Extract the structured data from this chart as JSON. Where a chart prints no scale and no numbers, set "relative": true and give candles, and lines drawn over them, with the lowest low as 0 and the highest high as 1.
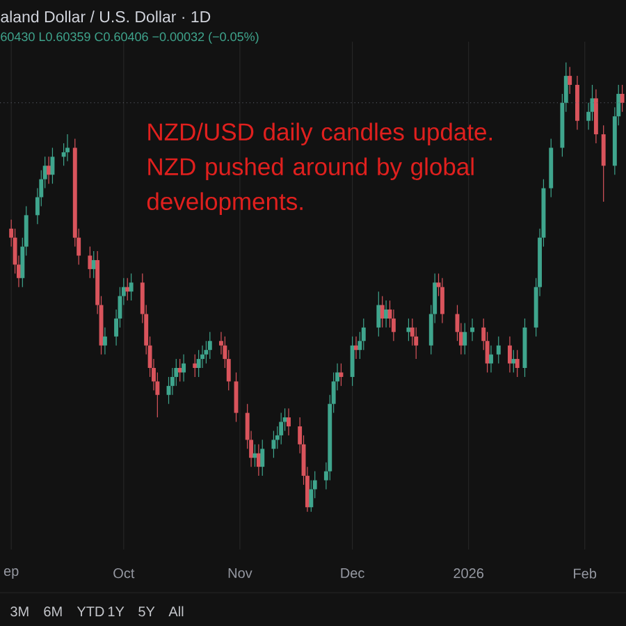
{
  "chart_data": {
    "type": "candlestick",
    "title": "aland Dollar / U.S. Dollar · 1D",
    "subtitle": "60430 L0.60359 C0.60406 −0.00032 (−0.05%)",
    "relative": true,
    "grid": "x",
    "colors": [
      "#d9545c",
      "#d9545c",
      "#d9545c",
      "#3fa58d",
      "#3fa58d",
      "#3fa58d",
      "#3fa58d",
      "#3fa58d",
      "#d9545c",
      "#3fa58d",
      "#3fa58d",
      "#3fa58d",
      "#d9545c",
      "#d9545c",
      "#d9545c",
      "#3fa58d",
      "#d9545c",
      "#d9545c",
      "#3fa58d",
      "#3fa58d",
      "#3fa58d",
      "#3fa58d",
      "#d9545c",
      "#3fa58d",
      "#d9545c",
      "#d9545c",
      "#d9545c",
      "#d9545c",
      "#d9545c",
      "#3fa58d",
      "#3fa58d",
      "#3fa58d",
      "#d9545c",
      "#3fa58d",
      "#d9545c",
      "#3fa58d",
      "#3fa58d",
      "#3fa58d",
      "#3fa58d",
      "#d9545c",
      "#d9545c",
      "#d9545c",
      "#d9545c",
      "#d9545c",
      "#d9545c",
      "#3fa58d",
      "#d9545c",
      "#3fa58d",
      "#3fa58d",
      "#3fa58d",
      "#3fa58d",
      "#3fa58d",
      "#d9545c",
      "#d9545c",
      "#d9545c",
      "#d9545c",
      "#3fa58d",
      "#3fa58d",
      "#3fa58d",
      "#3fa58d",
      "#3fa58d",
      "#3fa58d",
      "#d9545c",
      "#3fa58d",
      "#d9545c",
      "#3fa58d",
      "#3fa58d",
      "#3fa58d",
      "#d9545c",
      "#3fa58d",
      "#d9545c",
      "#d9545c",
      "#3fa58d",
      "#d9545c",
      "#d9545c",
      "#3fa58d",
      "#3fa58d",
      "#d9545c",
      "#d9545c",
      "#d9545c",
      "#d9545c",
      "#3fa58d",
      "#3fa58d",
      "#d9545c",
      "#d9545c",
      "#3fa58d",
      "#3fa58d",
      "#d9545c",
      "#3fa58d",
      "#d9545c",
      "#3fa58d",
      "#3fa58d",
      "#3fa58d",
      "#3fa58d",
      "#3fa58d",
      "#3fa58d",
      "#3fa58d",
      "#d9545c",
      "#d9545c",
      "#3fa58d",
      "#3fa58d",
      "#d9545c",
      "#d9545c",
      "#3fa58d",
      "#3fa58d",
      "#d9545c"
    ],
    "xlim": [
      "2025-08-29",
      "2026-02-12"
    ],
    "xticks": [
      {
        "value": "2025-09-01",
        "label": "ep"
      },
      {
        "value": "2025-10-01",
        "label": "Oct"
      },
      {
        "value": "2025-11-01",
        "label": "Nov"
      },
      {
        "value": "2025-12-01",
        "label": "Dec"
      },
      {
        "value": "2026-01-01",
        "label": "2026"
      },
      {
        "value": "2026-02-01",
        "label": "Feb"
      }
    ],
    "ref_lines": [
      {
        "axis": "y",
        "value": 0.91,
        "color": "#5d606b",
        "line_style": "dotted"
      }
    ],
    "annotations": [
      "NZD/USD daily candles update. NZD pushed around by global developments.",
      "3M",
      "6M",
      "YTD",
      "1Y",
      "5Y",
      "All"
    ],
    "x": [
      "2025-09-01",
      "2025-09-02",
      "2025-09-03",
      "2025-09-04",
      "2025-09-05",
      "2025-09-08",
      "2025-09-09",
      "2025-09-10",
      "2025-09-11",
      "2025-09-12",
      "2025-09-15",
      "2025-09-16",
      "2025-09-18",
      "2025-09-19",
      "2025-09-22",
      "2025-09-23",
      "2025-09-24",
      "2025-09-25",
      "2025-09-26",
      "2025-09-29",
      "2025-09-30",
      "2025-10-01",
      "2025-10-02",
      "2025-10-03",
      "2025-10-06",
      "2025-10-07",
      "2025-10-08",
      "2025-10-09",
      "2025-10-10",
      "2025-10-13",
      "2025-10-14",
      "2025-10-15",
      "2025-10-16",
      "2025-10-17",
      "2025-10-20",
      "2025-10-21",
      "2025-10-22",
      "2025-10-23",
      "2025-10-24",
      "2025-10-27",
      "2025-10-28",
      "2025-10-29",
      "2025-10-31",
      "2025-11-03",
      "2025-11-04",
      "2025-11-05",
      "2025-11-06",
      "2025-11-07",
      "2025-11-10",
      "2025-11-11",
      "2025-11-12",
      "2025-11-13",
      "2025-11-14",
      "2025-11-17",
      "2025-11-18",
      "2025-11-19",
      "2025-11-20",
      "2025-11-21",
      "2025-11-24",
      "2025-11-25",
      "2025-11-26",
      "2025-11-27",
      "2025-11-28",
      "2025-12-01",
      "2025-12-02",
      "2025-12-03",
      "2025-12-04",
      "2025-12-08",
      "2025-12-09",
      "2025-12-10",
      "2025-12-11",
      "2025-12-12",
      "2025-12-16",
      "2025-12-17",
      "2025-12-18",
      "2025-12-22",
      "2025-12-23",
      "2025-12-24",
      "2025-12-25",
      "2025-12-29",
      "2025-12-30",
      "2025-12-31",
      "2026-01-02",
      "2026-01-05",
      "2026-01-06",
      "2026-01-07",
      "2026-01-09",
      "2026-01-12",
      "2026-01-13",
      "2026-01-14",
      "2026-01-16",
      "2026-01-19",
      "2026-01-20",
      "2026-01-21",
      "2026-01-23",
      "2026-01-26",
      "2026-01-27",
      "2026-01-28",
      "2026-01-30",
      "2026-02-02",
      "2026-02-03",
      "2026-02-04",
      "2026-02-06",
      "2026-02-09",
      "2026-02-10",
      "2026-02-11"
    ],
    "ohlc": [
      [
        0.63,
        0.65,
        0.59,
        0.61
      ],
      [
        0.61,
        0.63,
        0.53,
        0.55
      ],
      [
        0.55,
        0.57,
        0.5,
        0.52
      ],
      [
        0.52,
        0.61,
        0.5,
        0.59
      ],
      [
        0.59,
        0.68,
        0.57,
        0.66
      ],
      [
        0.66,
        0.72,
        0.64,
        0.7
      ],
      [
        0.7,
        0.76,
        0.68,
        0.74
      ],
      [
        0.74,
        0.79,
        0.72,
        0.77
      ],
      [
        0.77,
        0.79,
        0.73,
        0.75
      ],
      [
        0.75,
        0.81,
        0.73,
        0.79
      ],
      [
        0.79,
        0.82,
        0.77,
        0.8
      ],
      [
        0.8,
        0.84,
        0.78,
        0.81
      ],
      [
        0.81,
        0.83,
        0.59,
        0.61
      ],
      [
        0.61,
        0.63,
        0.55,
        0.57
      ],
      [
        0.57,
        0.59,
        0.52,
        0.54
      ],
      [
        0.54,
        0.58,
        0.52,
        0.56
      ],
      [
        0.56,
        0.58,
        0.44,
        0.46
      ],
      [
        0.46,
        0.48,
        0.35,
        0.37
      ],
      [
        0.37,
        0.41,
        0.35,
        0.39
      ],
      [
        0.39,
        0.45,
        0.37,
        0.43
      ],
      [
        0.43,
        0.5,
        0.41,
        0.48
      ],
      [
        0.48,
        0.52,
        0.46,
        0.5
      ],
      [
        0.5,
        0.52,
        0.47,
        0.49
      ],
      [
        0.49,
        0.53,
        0.47,
        0.51
      ],
      [
        0.51,
        0.53,
        0.42,
        0.44
      ],
      [
        0.44,
        0.46,
        0.35,
        0.37
      ],
      [
        0.37,
        0.39,
        0.3,
        0.32
      ],
      [
        0.32,
        0.34,
        0.27,
        0.29
      ],
      [
        0.29,
        0.31,
        0.21,
        0.26
      ],
      [
        0.26,
        0.3,
        0.24,
        0.28
      ],
      [
        0.28,
        0.32,
        0.26,
        0.3
      ],
      [
        0.3,
        0.34,
        0.28,
        0.32
      ],
      [
        0.32,
        0.34,
        0.29,
        0.31
      ],
      [
        0.31,
        0.35,
        0.29,
        0.33
      ],
      [
        0.33,
        0.35,
        0.3,
        0.32
      ],
      [
        0.32,
        0.36,
        0.3,
        0.34
      ],
      [
        0.34,
        0.37,
        0.32,
        0.35
      ],
      [
        0.35,
        0.38,
        0.33,
        0.36
      ],
      [
        0.36,
        0.4,
        0.34,
        0.38
      ],
      [
        0.38,
        0.4,
        0.35,
        0.37
      ],
      [
        0.37,
        0.39,
        0.32,
        0.34
      ],
      [
        0.34,
        0.36,
        0.27,
        0.29
      ],
      [
        0.29,
        0.31,
        0.2,
        0.22
      ],
      [
        0.22,
        0.24,
        0.14,
        0.16
      ],
      [
        0.16,
        0.18,
        0.1,
        0.12
      ],
      [
        0.12,
        0.15,
        0.1,
        0.13
      ],
      [
        0.13,
        0.15,
        0.08,
        0.1
      ],
      [
        0.1,
        0.16,
        0.08,
        0.14
      ],
      [
        0.14,
        0.18,
        0.12,
        0.16
      ],
      [
        0.16,
        0.19,
        0.14,
        0.17
      ],
      [
        0.17,
        0.22,
        0.15,
        0.2
      ],
      [
        0.2,
        0.23,
        0.18,
        0.21
      ],
      [
        0.21,
        0.23,
        0.17,
        0.19
      ],
      [
        0.19,
        0.21,
        0.13,
        0.15
      ],
      [
        0.15,
        0.17,
        0.06,
        0.08
      ],
      [
        0.08,
        0.1,
        0.0,
        0.01
      ],
      [
        0.01,
        0.07,
        0.0,
        0.05
      ],
      [
        0.05,
        0.09,
        0.03,
        0.07
      ],
      [
        0.07,
        0.11,
        0.05,
        0.09
      ],
      [
        0.09,
        0.26,
        0.07,
        0.24
      ],
      [
        0.24,
        0.31,
        0.22,
        0.29
      ],
      [
        0.29,
        0.33,
        0.27,
        0.31
      ],
      [
        0.31,
        0.33,
        0.28,
        0.3
      ],
      [
        0.3,
        0.39,
        0.28,
        0.37
      ],
      [
        0.37,
        0.39,
        0.34,
        0.36
      ],
      [
        0.36,
        0.4,
        0.34,
        0.38
      ],
      [
        0.38,
        0.43,
        0.36,
        0.41
      ],
      [
        0.41,
        0.49,
        0.39,
        0.46
      ],
      [
        0.46,
        0.48,
        0.41,
        0.43
      ],
      [
        0.43,
        0.47,
        0.41,
        0.45
      ],
      [
        0.45,
        0.47,
        0.41,
        0.43
      ],
      [
        0.43,
        0.45,
        0.38,
        0.4
      ],
      [
        0.4,
        0.43,
        0.38,
        0.41
      ],
      [
        0.41,
        0.43,
        0.37,
        0.39
      ],
      [
        0.39,
        0.41,
        0.34,
        0.37
      ],
      [
        0.37,
        0.46,
        0.35,
        0.44
      ],
      [
        0.44,
        0.53,
        0.42,
        0.51
      ],
      [
        0.51,
        0.53,
        0.48,
        0.5
      ],
      [
        0.5,
        0.52,
        0.42,
        0.44
      ],
      [
        0.44,
        0.46,
        0.38,
        0.4
      ],
      [
        0.4,
        0.42,
        0.35,
        0.37
      ],
      [
        0.37,
        0.42,
        0.35,
        0.4
      ],
      [
        0.4,
        0.43,
        0.38,
        0.41
      ],
      [
        0.41,
        0.43,
        0.36,
        0.38
      ],
      [
        0.38,
        0.4,
        0.31,
        0.33
      ],
      [
        0.33,
        0.37,
        0.31,
        0.35
      ],
      [
        0.35,
        0.39,
        0.33,
        0.37
      ],
      [
        0.37,
        0.39,
        0.31,
        0.33
      ],
      [
        0.33,
        0.36,
        0.31,
        0.34
      ],
      [
        0.34,
        0.36,
        0.3,
        0.32
      ],
      [
        0.32,
        0.43,
        0.3,
        0.41
      ],
      [
        0.41,
        0.52,
        0.39,
        0.5
      ],
      [
        0.5,
        0.63,
        0.48,
        0.61
      ],
      [
        0.61,
        0.74,
        0.59,
        0.72
      ],
      [
        0.72,
        0.83,
        0.7,
        0.81
      ],
      [
        0.81,
        0.93,
        0.79,
        0.91
      ],
      [
        0.91,
        1.0,
        0.89,
        0.97
      ],
      [
        0.97,
        0.99,
        0.93,
        0.95
      ],
      [
        0.95,
        0.97,
        0.85,
        0.87
      ],
      [
        0.87,
        0.91,
        0.85,
        0.89
      ],
      [
        0.89,
        0.95,
        0.87,
        0.92
      ],
      [
        0.92,
        0.94,
        0.82,
        0.84
      ],
      [
        0.84,
        0.86,
        0.69,
        0.77
      ],
      [
        0.77,
        0.9,
        0.75,
        0.88
      ],
      [
        0.88,
        0.95,
        0.86,
        0.93
      ],
      [
        0.93,
        0.95,
        0.89,
        0.91
      ]
    ]
  }
}
